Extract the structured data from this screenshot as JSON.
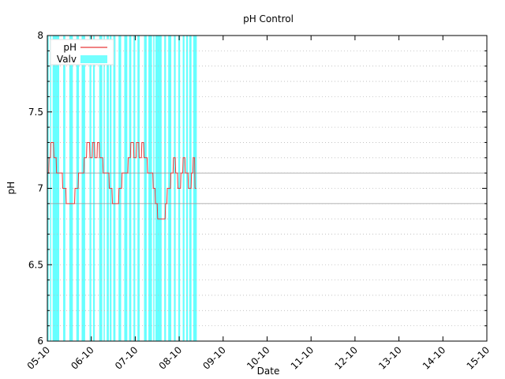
{
  "chart_data": {
    "type": "line",
    "title": "pH Control",
    "xlabel": "Date",
    "ylabel": "pH",
    "ylim": [
      6,
      8
    ],
    "xlim": [
      "05-10",
      "15-10"
    ],
    "yticks": [
      "6",
      "6.5",
      "7",
      "7.5",
      "8"
    ],
    "xticks": [
      "05-10",
      "06-10",
      "07-10",
      "08-10",
      "09-10",
      "10-10",
      "11-10",
      "12-10",
      "13-10",
      "14-10",
      "15-10"
    ],
    "grid": "horizontal dotted minor lines every 0.1",
    "legend": "top-left",
    "reference_lines": [
      7.1,
      6.9
    ],
    "series": [
      {
        "name": "pH",
        "color": "#e8393a",
        "points": [
          [
            5.0,
            7.1
          ],
          [
            5.03,
            7.1
          ],
          [
            5.04,
            7.2
          ],
          [
            5.07,
            7.2
          ],
          [
            5.08,
            7.3
          ],
          [
            5.14,
            7.3
          ],
          [
            5.15,
            7.2
          ],
          [
            5.2,
            7.2
          ],
          [
            5.21,
            7.1
          ],
          [
            5.34,
            7.1
          ],
          [
            5.35,
            7.0
          ],
          [
            5.42,
            7.0
          ],
          [
            5.43,
            6.9
          ],
          [
            5.62,
            6.9
          ],
          [
            5.63,
            7.0
          ],
          [
            5.7,
            7.0
          ],
          [
            5.71,
            7.1
          ],
          [
            5.83,
            7.1
          ],
          [
            5.84,
            7.2
          ],
          [
            5.89,
            7.2
          ],
          [
            5.9,
            7.3
          ],
          [
            5.96,
            7.3
          ],
          [
            5.97,
            7.2
          ],
          [
            6.02,
            7.2
          ],
          [
            6.03,
            7.3
          ],
          [
            6.07,
            7.3
          ],
          [
            6.08,
            7.2
          ],
          [
            6.13,
            7.2
          ],
          [
            6.14,
            7.3
          ],
          [
            6.18,
            7.3
          ],
          [
            6.19,
            7.2
          ],
          [
            6.26,
            7.2
          ],
          [
            6.27,
            7.1
          ],
          [
            6.4,
            7.1
          ],
          [
            6.41,
            7.0
          ],
          [
            6.47,
            7.0
          ],
          [
            6.48,
            6.9
          ],
          [
            6.62,
            6.9
          ],
          [
            6.63,
            7.0
          ],
          [
            6.69,
            7.0
          ],
          [
            6.7,
            7.1
          ],
          [
            6.83,
            7.1
          ],
          [
            6.84,
            7.2
          ],
          [
            6.89,
            7.2
          ],
          [
            6.9,
            7.3
          ],
          [
            6.96,
            7.3
          ],
          [
            6.97,
            7.2
          ],
          [
            7.02,
            7.2
          ],
          [
            7.03,
            7.3
          ],
          [
            7.08,
            7.3
          ],
          [
            7.09,
            7.2
          ],
          [
            7.14,
            7.2
          ],
          [
            7.15,
            7.3
          ],
          [
            7.19,
            7.3
          ],
          [
            7.2,
            7.2
          ],
          [
            7.27,
            7.2
          ],
          [
            7.28,
            7.1
          ],
          [
            7.4,
            7.1
          ],
          [
            7.41,
            7.0
          ],
          [
            7.45,
            7.0
          ],
          [
            7.46,
            6.9
          ],
          [
            7.5,
            6.9
          ],
          [
            7.51,
            6.8
          ],
          [
            7.68,
            6.8
          ],
          [
            7.69,
            6.9
          ],
          [
            7.72,
            6.9
          ],
          [
            7.73,
            7.0
          ],
          [
            7.8,
            7.0
          ],
          [
            7.81,
            7.1
          ],
          [
            7.86,
            7.1
          ],
          [
            7.87,
            7.2
          ],
          [
            7.91,
            7.2
          ],
          [
            7.92,
            7.1
          ],
          [
            7.96,
            7.1
          ],
          [
            7.97,
            7.0
          ],
          [
            8.03,
            7.0
          ],
          [
            8.04,
            7.1
          ],
          [
            8.08,
            7.1
          ],
          [
            8.09,
            7.2
          ],
          [
            8.13,
            7.2
          ],
          [
            8.14,
            7.1
          ],
          [
            8.2,
            7.1
          ],
          [
            8.21,
            7.0
          ],
          [
            8.27,
            7.0
          ],
          [
            8.28,
            7.1
          ],
          [
            8.31,
            7.1
          ],
          [
            8.32,
            7.2
          ],
          [
            8.35,
            7.2
          ],
          [
            8.36,
            7.0
          ],
          [
            8.39,
            7.0
          ]
        ]
      },
      {
        "name": "Valv",
        "color": "#00ffff",
        "open_intervals": [
          [
            5.0,
            5.03
          ],
          [
            5.06,
            5.08
          ],
          [
            5.12,
            5.27
          ],
          [
            5.36,
            5.41
          ],
          [
            5.5,
            5.58
          ],
          [
            5.66,
            5.72
          ],
          [
            5.78,
            5.86
          ],
          [
            5.96,
            6.0
          ],
          [
            6.04,
            6.08
          ],
          [
            6.18,
            6.25
          ],
          [
            6.28,
            6.3
          ],
          [
            6.35,
            6.4
          ],
          [
            6.42,
            6.46
          ],
          [
            6.5,
            6.55
          ],
          [
            6.62,
            6.68
          ],
          [
            6.75,
            6.82
          ],
          [
            6.86,
            6.91
          ],
          [
            6.96,
            7.0
          ],
          [
            7.05,
            7.1
          ],
          [
            7.2,
            7.26
          ],
          [
            7.3,
            7.38
          ],
          [
            7.41,
            7.43
          ],
          [
            7.46,
            7.6
          ],
          [
            7.66,
            7.7
          ],
          [
            7.75,
            7.82
          ],
          [
            7.88,
            7.92
          ],
          [
            7.98,
            8.02
          ],
          [
            8.08,
            8.12
          ],
          [
            8.16,
            8.2
          ],
          [
            8.23,
            8.28
          ],
          [
            8.32,
            8.4
          ]
        ]
      }
    ]
  }
}
